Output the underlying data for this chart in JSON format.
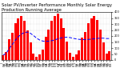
{
  "title": "Solar PV/Inverter Performance Monthly Solar Energy Production Running Average",
  "bar_color": "#ff0000",
  "line_color": "#0000ff",
  "background_color": "#ffffff",
  "grid_color": "#c0c0c0",
  "months": [
    "J\n'06",
    "F\n'06",
    "M\n'06",
    "A\n'06",
    "M\n'06",
    "J\n'06",
    "J\n'06",
    "A\n'06",
    "S\n'06",
    "O\n'06",
    "N\n'06",
    "D\n'06",
    "J\n'07",
    "F\n'07",
    "M\n'07",
    "A\n'07",
    "M\n'07",
    "J\n'07",
    "J\n'07",
    "A\n'07",
    "S\n'07",
    "O\n'07",
    "N\n'07",
    "D\n'07",
    "J\n'08",
    "F\n'08",
    "M\n'08",
    "A\n'08",
    "M\n'08",
    "J\n'08",
    "J\n'08",
    "A\n'08",
    "S\n'08",
    "O\n'08",
    "N\n'08",
    "D\n'08"
  ],
  "values": [
    40,
    70,
    175,
    230,
    305,
    345,
    365,
    325,
    245,
    145,
    55,
    25,
    50,
    85,
    195,
    255,
    325,
    365,
    385,
    345,
    265,
    155,
    60,
    30,
    45,
    80,
    190,
    235,
    310,
    350,
    370,
    335,
    255,
    150,
    55,
    75
  ],
  "running_avg": [
    40,
    55,
    95,
    129,
    164,
    194,
    216,
    229,
    233,
    222,
    204,
    182,
    167,
    158,
    155,
    157,
    161,
    168,
    176,
    183,
    188,
    190,
    187,
    181,
    176,
    172,
    170,
    170,
    171,
    174,
    177,
    180,
    182,
    182,
    179,
    179
  ],
  "ylim": [
    0,
    400
  ],
  "yticks": [
    0,
    50,
    100,
    150,
    200,
    250,
    300,
    350,
    400
  ],
  "title_fontsize": 3.8,
  "tick_fontsize": 2.5
}
